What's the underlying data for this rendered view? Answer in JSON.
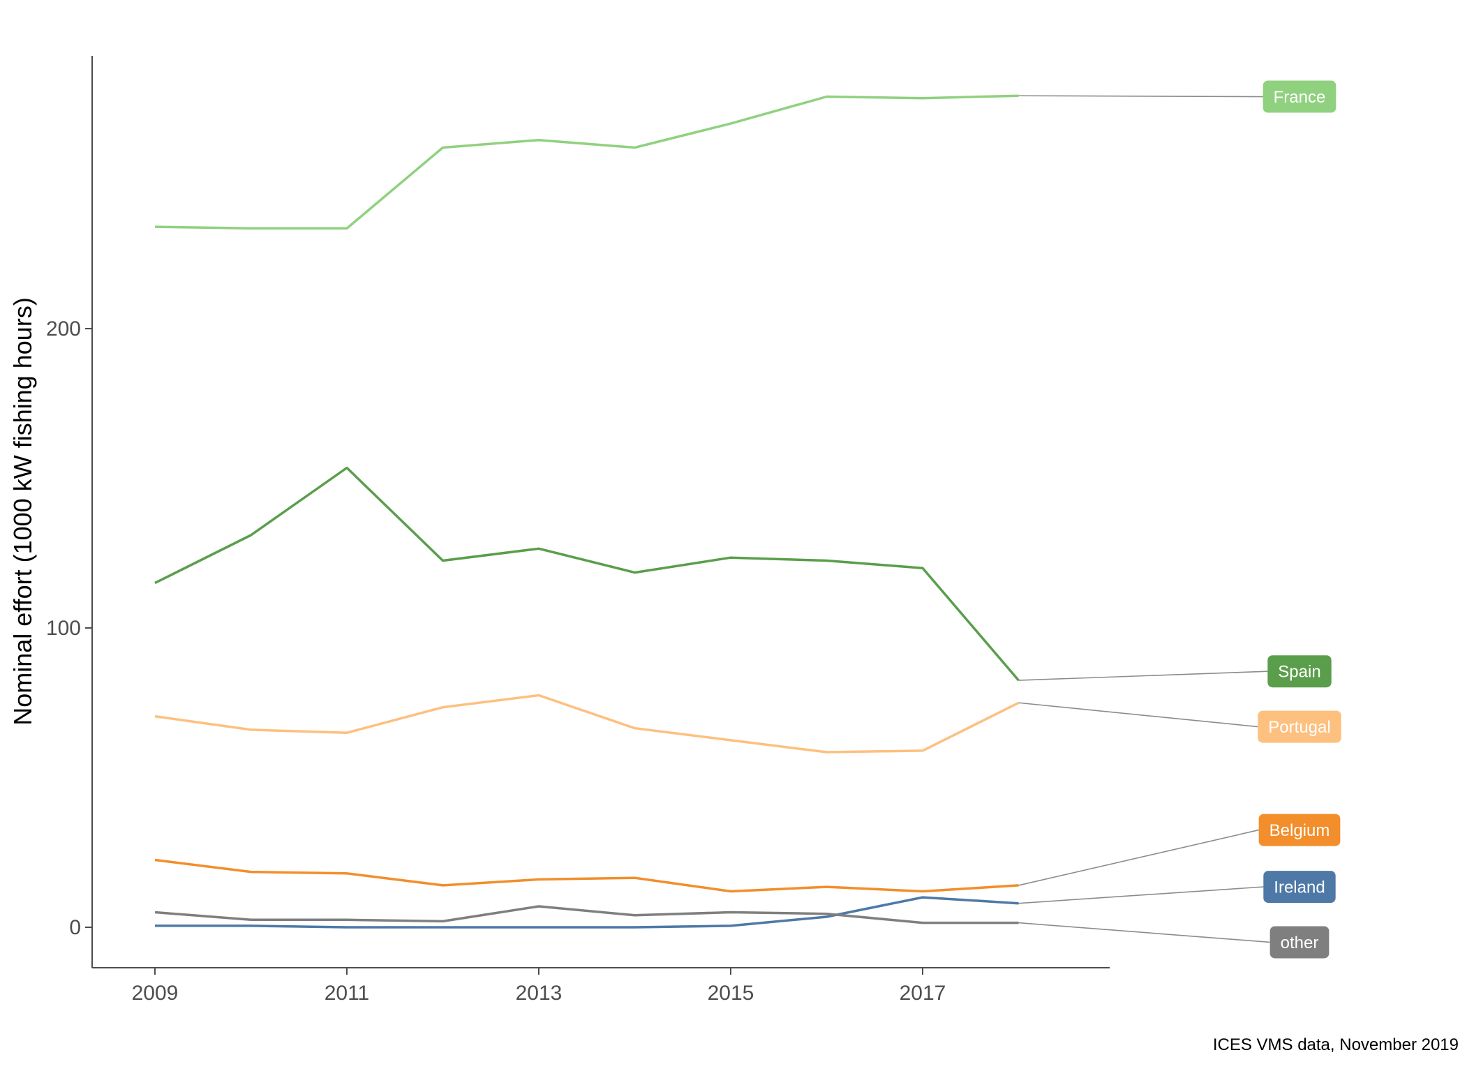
{
  "chart_data": {
    "type": "line",
    "title": "",
    "xlabel": "",
    "ylabel": "Nominal effort (1000 kW fishing hours)",
    "x": [
      2009,
      2010,
      2011,
      2012,
      2013,
      2014,
      2015,
      2016,
      2017,
      2018
    ],
    "xlim": [
      2008.33,
      2019.1
    ],
    "ylim": [
      -13.5,
      291
    ],
    "x_ticks": [
      2009,
      2011,
      2013,
      2015,
      2017
    ],
    "y_ticks": [
      0,
      100,
      200
    ],
    "x_tick_labels": [
      "2009",
      "2011",
      "2013",
      "2015",
      "2017"
    ],
    "y_tick_labels": [
      "0",
      "100",
      "200"
    ],
    "grid": false,
    "legend": "direct labels at right",
    "series": [
      {
        "name": "France",
        "color": "#90d17f",
        "values": [
          234,
          233.5,
          233.5,
          260.5,
          263,
          260.5,
          268.5,
          277.5,
          277,
          277.8
        ]
      },
      {
        "name": "Spain",
        "color": "#5a9e4b",
        "values": [
          115,
          131,
          153.5,
          122.5,
          126.5,
          118.5,
          123.5,
          122.5,
          120,
          82.5
        ]
      },
      {
        "name": "Portugal",
        "color": "#fdc07f",
        "values": [
          70.5,
          66,
          65,
          73.5,
          77.5,
          66.5,
          62.5,
          58.5,
          59,
          75
        ]
      },
      {
        "name": "Belgium",
        "color": "#f28e2b",
        "values": [
          22.5,
          18.5,
          18,
          14,
          16,
          16.5,
          12,
          13.5,
          12,
          14
        ]
      },
      {
        "name": "Ireland",
        "color": "#4e79a7",
        "values": [
          0.5,
          0.5,
          0,
          0,
          0,
          0,
          0.5,
          3.5,
          10,
          8
        ]
      },
      {
        "name": "other",
        "color": "#7f7f7f",
        "values": [
          5,
          2.5,
          2.5,
          2,
          7,
          4,
          5,
          4.5,
          1.5,
          1.5
        ]
      }
    ],
    "labels": [
      {
        "name": "France",
        "value": 277.5
      },
      {
        "name": "Spain",
        "value": 85.5
      },
      {
        "name": "Portugal",
        "value": 67
      },
      {
        "name": "Belgium",
        "value": 32.5
      },
      {
        "name": "Ireland",
        "value": 13.5
      },
      {
        "name": "other",
        "value": -5
      }
    ],
    "caption": "ICES VMS data, November 2019"
  }
}
